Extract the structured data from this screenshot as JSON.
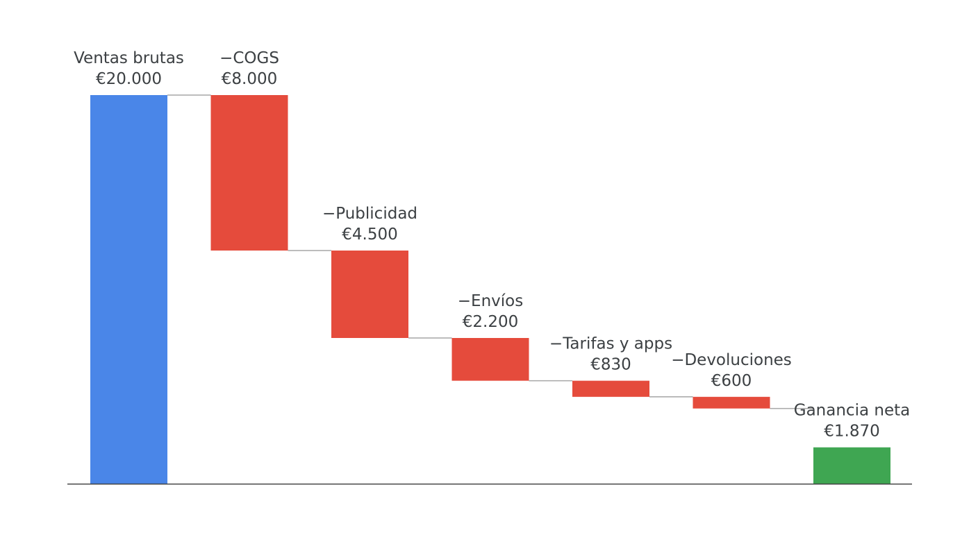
{
  "chart_data": {
    "type": "waterfall",
    "title": "",
    "xlabel": "",
    "ylabel": "",
    "ylim": [
      0,
      20000
    ],
    "grid": false,
    "legend": "none",
    "currency": "€",
    "categories": [
      "Ventas brutas",
      "−COGS",
      "−Publicidad",
      "−Envíos",
      "−Tarifas y apps",
      "−Devoluciones",
      "Ganancia neta"
    ],
    "value_labels": [
      "€20.000",
      "€8.000",
      "€4.500",
      "€2.200",
      "€830",
      "€600",
      "€1.870"
    ],
    "values": [
      20000,
      -8000,
      -4500,
      -2200,
      -830,
      -600,
      1870
    ],
    "kinds": [
      "total",
      "decrease",
      "decrease",
      "decrease",
      "decrease",
      "decrease",
      "total"
    ],
    "colors": {
      "total_start": "#4a86e8",
      "decrease": "#e54b3c",
      "total_end": "#3fa652",
      "connector": "#a6a6a6",
      "axis": "#444444",
      "label": "#3c4043"
    }
  }
}
